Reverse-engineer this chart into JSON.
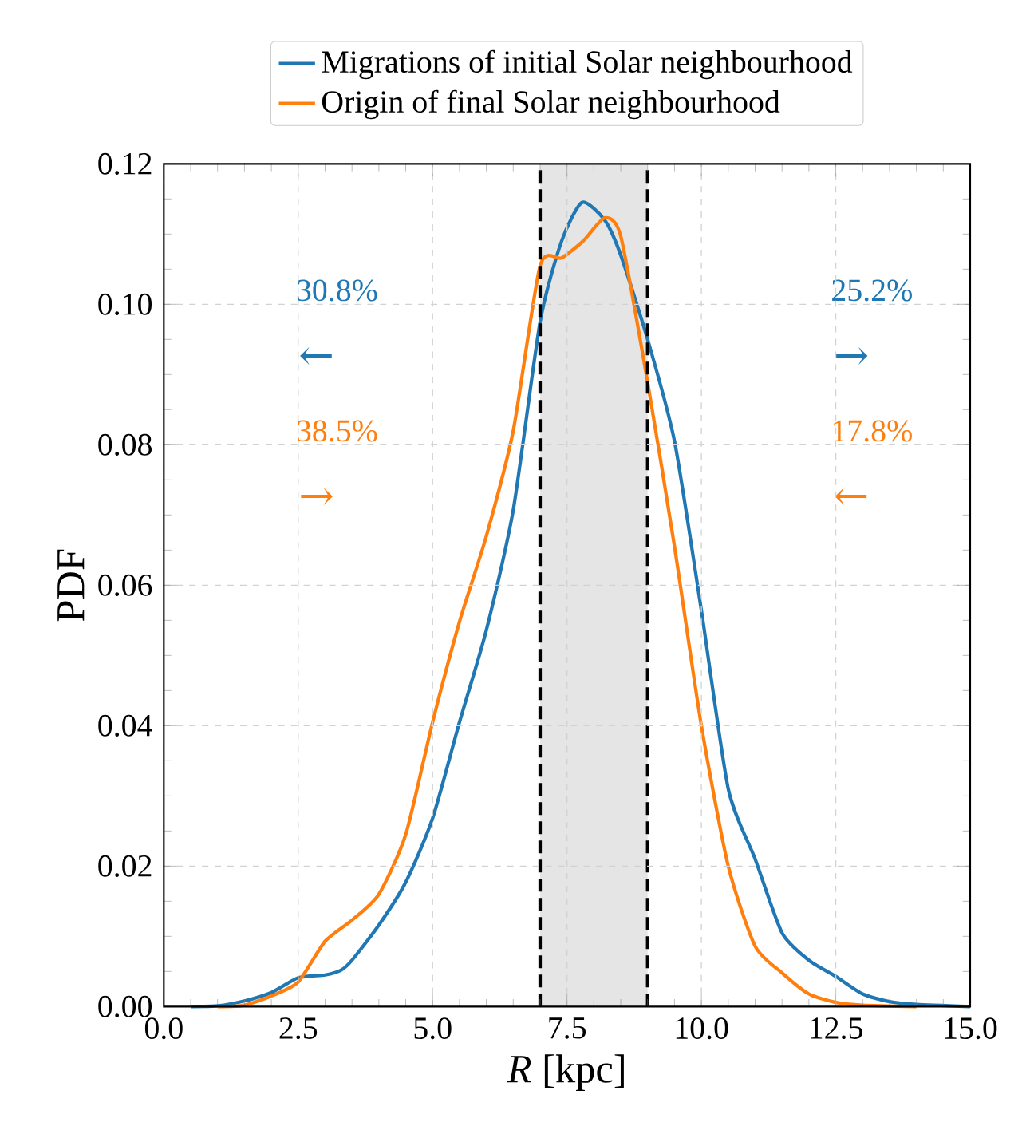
{
  "chart_data": {
    "type": "line",
    "xlabel": "*R* [kpc]",
    "ylabel": "PDF",
    "xlim": [
      0,
      15
    ],
    "ylim": [
      0,
      0.12
    ],
    "xticks": [
      {
        "value": 0,
        "label": "0.0"
      },
      {
        "value": 2.5,
        "label": "2.5"
      },
      {
        "value": 5,
        "label": "5.0"
      },
      {
        "value": 7.5,
        "label": "7.5"
      },
      {
        "value": 10,
        "label": "10.0"
      },
      {
        "value": 12.5,
        "label": "12.5"
      },
      {
        "value": 15,
        "label": "15.0"
      }
    ],
    "yticks": [
      {
        "value": 0,
        "label": "0.00"
      },
      {
        "value": 0.02,
        "label": "0.02"
      },
      {
        "value": 0.04,
        "label": "0.04"
      },
      {
        "value": 0.06,
        "label": "0.06"
      },
      {
        "value": 0.08,
        "label": "0.08"
      },
      {
        "value": 0.1,
        "label": "0.10"
      },
      {
        "value": 0.12,
        "label": "0.12"
      }
    ],
    "series": [
      {
        "name": "Migrations of initial Solar neighbourhood",
        "color": "#1f77b4",
        "x": [
          0.5,
          1,
          1.5,
          2,
          2.5,
          3,
          3.3,
          3.5,
          4,
          4.5,
          5,
          5.5,
          6,
          6.5,
          7,
          7.4,
          7.78,
          8.2,
          8.5,
          9,
          9.5,
          10,
          10.5,
          11,
          11.5,
          12,
          12.5,
          13,
          13.5,
          14,
          15
        ],
        "values": [
          0,
          0.0001,
          0.0008,
          0.002,
          0.0041,
          0.0045,
          0.0052,
          0.0066,
          0.0116,
          0.0177,
          0.0268,
          0.0405,
          0.0536,
          0.0707,
          0.0975,
          0.109,
          0.1145,
          0.112,
          0.107,
          0.095,
          0.0805,
          0.0564,
          0.031,
          0.021,
          0.0105,
          0.0066,
          0.0043,
          0.0018,
          0.0007,
          0.0003,
          0
        ]
      },
      {
        "name": "Origin of final Solar neighbourhood",
        "color": "#ff7f0e",
        "x": [
          1,
          1.5,
          2,
          2.5,
          3,
          3.5,
          4,
          4.5,
          5,
          5.5,
          6,
          6.5,
          7,
          7.4,
          7.8,
          8.2,
          8.5,
          9,
          9.5,
          10,
          10.5,
          11,
          11.5,
          12,
          12.5,
          13,
          14
        ],
        "values": [
          0,
          0.0002,
          0.0015,
          0.0035,
          0.0093,
          0.0123,
          0.016,
          0.0245,
          0.0405,
          0.0548,
          0.067,
          0.082,
          0.1055,
          0.1066,
          0.109,
          0.1123,
          0.1097,
          0.0889,
          0.0655,
          0.04,
          0.02,
          0.0086,
          0.0048,
          0.0018,
          0.0006,
          0.0002,
          0
        ]
      }
    ],
    "ref_lines": [
      {
        "axis": "x",
        "value": 7,
        "color": "#000000",
        "line_style": "dashed"
      },
      {
        "axis": "x",
        "value": 9,
        "color": "#000000",
        "line_style": "dashed"
      }
    ],
    "bands": [
      {
        "axis": "x",
        "from": 7,
        "to": 9,
        "color": "#e5e5e5"
      }
    ],
    "annotations": [
      "30.8%",
      "←",
      "25.2%",
      "→",
      "38.5%",
      "→",
      "17.8%",
      "←"
    ],
    "grid": true,
    "legend": "top",
    "marker": "none",
    "line_style": "solid"
  }
}
